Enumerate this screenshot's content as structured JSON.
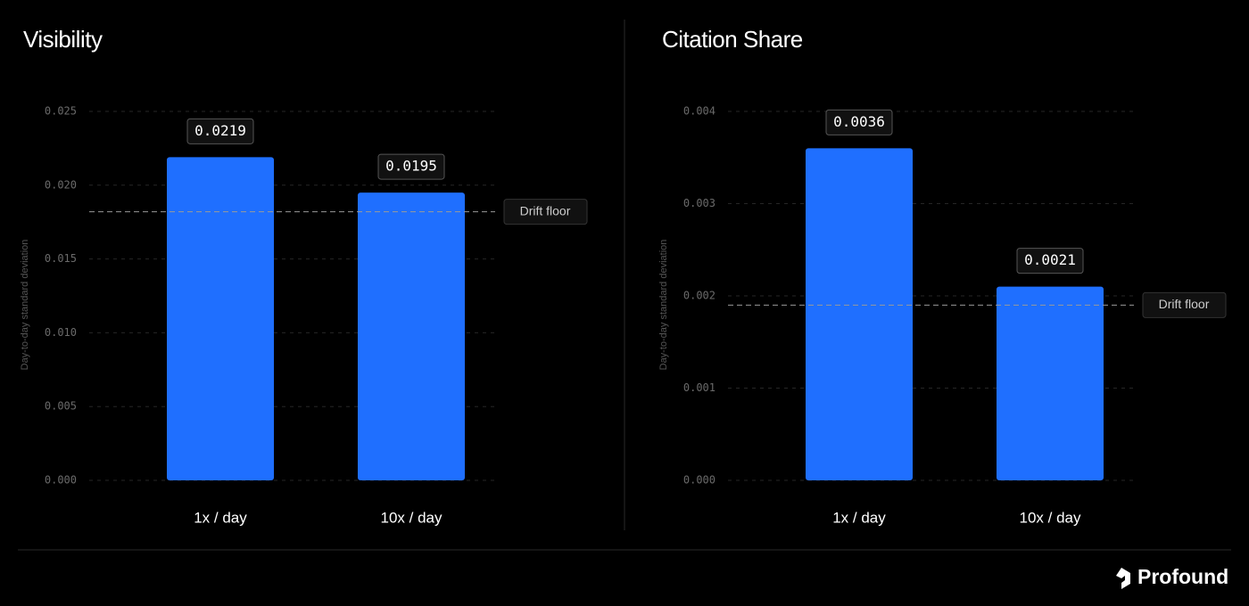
{
  "chart_data": [
    {
      "type": "bar",
      "title": "Visibility",
      "y_label": "Day-to-day standard deviation",
      "categories": [
        "1x / day",
        "10x / day"
      ],
      "values": [
        0.0219,
        0.0195
      ],
      "color": "#1f6fff",
      "ylim": [
        0,
        0.025
      ],
      "yticks": [
        {
          "value": 0,
          "label": "0.000"
        },
        0.005,
        {
          "value": 0.01,
          "label": "0.010"
        },
        0.015,
        {
          "value": 0.02,
          "label": "0.020"
        },
        0.025
      ],
      "grid": true,
      "reference_line": {
        "value": 0.0182,
        "label": "Drift floor"
      }
    },
    {
      "type": "bar",
      "title": "Citation Share",
      "y_label": "Day-to-day standard deviation",
      "categories": [
        "1x / day",
        "10x / day"
      ],
      "values": [
        0.0036,
        0.0021
      ],
      "color": "#1f6fff",
      "ylim": [
        0,
        0.004
      ],
      "yticks": [
        {
          "value": 0,
          "label": "0.000"
        },
        0.001,
        0.002,
        0.003,
        0.004
      ],
      "grid": true,
      "reference_line": {
        "value": 0.0019,
        "label": "Drift floor"
      }
    }
  ],
  "brand": "Profound"
}
